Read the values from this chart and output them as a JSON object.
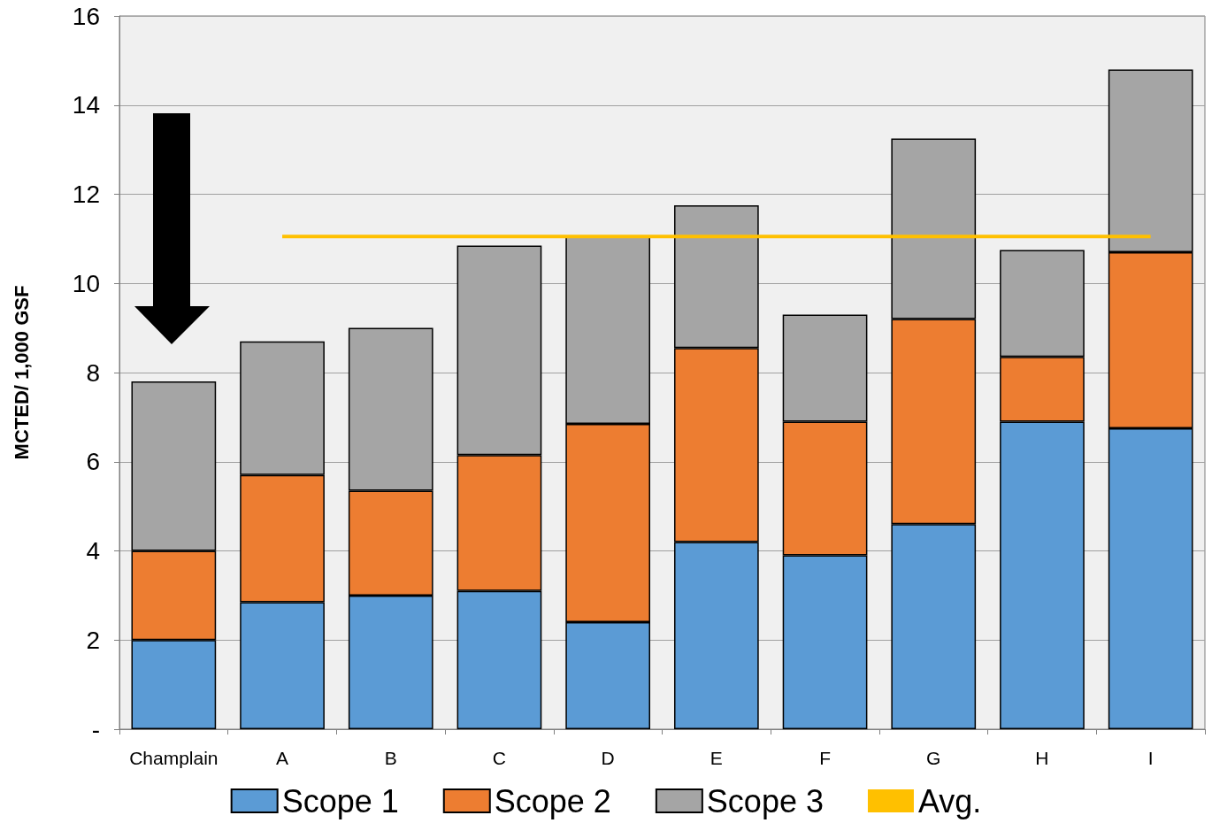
{
  "chart_data": {
    "type": "bar",
    "ylabel": "MCTED/ 1,000 GSF",
    "stacked": true,
    "grid": "y",
    "legend": "bottom",
    "marker": "none",
    "categories": [
      "Champlain",
      "A",
      "B",
      "C",
      "D",
      "E",
      "F",
      "G",
      "H",
      "I"
    ],
    "ylim": [
      0,
      16
    ],
    "yticks": [
      {
        "value": 0,
        "label": "-"
      },
      2,
      4,
      6,
      8,
      10,
      12,
      14,
      16
    ],
    "series": [
      {
        "name": "Scope 1",
        "color": "#5b9bd5",
        "values": [
          2.0,
          2.85,
          3.0,
          3.1,
          2.4,
          4.2,
          3.9,
          4.6,
          6.9,
          6.75
        ]
      },
      {
        "name": "Scope 2",
        "color": "#ed7d31",
        "values": [
          2.0,
          2.85,
          2.35,
          3.05,
          4.45,
          4.35,
          3.0,
          4.6,
          1.45,
          3.95
        ]
      },
      {
        "name": "Scope 3",
        "color": "#a5a5a5",
        "values": [
          3.8,
          3.0,
          3.65,
          4.7,
          4.2,
          3.2,
          2.4,
          4.05,
          2.4,
          4.1
        ]
      },
      {
        "name": "Avg.",
        "type": "line",
        "color": "#ffc000",
        "values": [
          null,
          11.05,
          11.05,
          11.05,
          11.05,
          11.05,
          11.05,
          11.05,
          11.05,
          11.05
        ]
      }
    ]
  }
}
